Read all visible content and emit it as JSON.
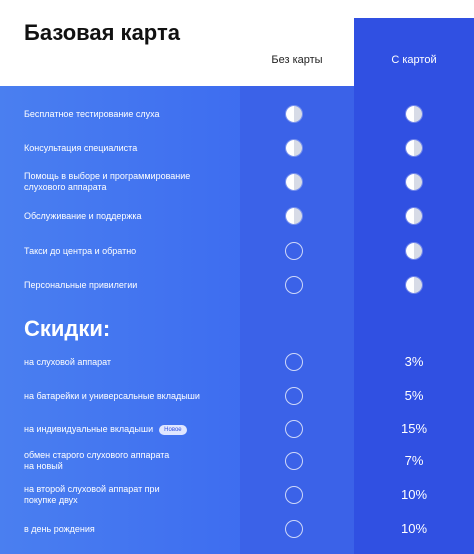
{
  "title": "Базовая карта",
  "columns": {
    "without": "Без карты",
    "with": "С картой"
  },
  "benefits": [
    {
      "label": "Бесплатное тестирование слуха",
      "without": "half",
      "with": "half"
    },
    {
      "label": "Консультация специалиста",
      "without": "half",
      "with": "half"
    },
    {
      "label": "Помощь в выборе и программирование слухового аппарата",
      "without": "half",
      "with": "half"
    },
    {
      "label": "Обслуживание и поддержка",
      "without": "half",
      "with": "half"
    },
    {
      "label": "Такси до центра и обратно",
      "without": "empty",
      "with": "half"
    },
    {
      "label": "Персональные привилегии",
      "without": "empty",
      "with": "half"
    }
  ],
  "discounts_title": "Скидки:",
  "discounts": [
    {
      "label": "на слуховой аппарат",
      "value": "3%"
    },
    {
      "label": "на батарейки и универсальные вкладыши",
      "value": "5%"
    },
    {
      "label": "на индивидуальные вкладыши",
      "badge": "Новое",
      "value": "15%"
    },
    {
      "label": "обмен старого слухового аппарата на новый",
      "value": "7%"
    },
    {
      "label": "на второй слуховой аппарат при покупке двух",
      "value": "10%"
    },
    {
      "label": "в день рождения",
      "value": "10%"
    }
  ]
}
